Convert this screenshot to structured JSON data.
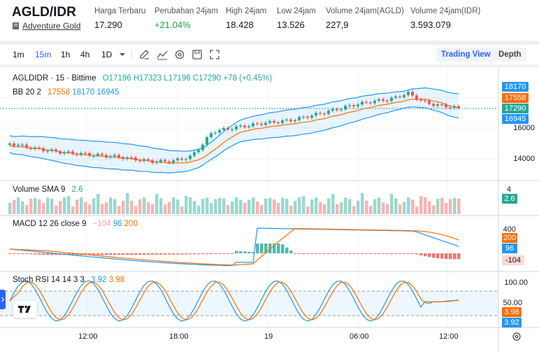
{
  "header": {
    "pair": "AGLD/IDR",
    "token_name": "Adventure Gold",
    "stats": [
      {
        "label": "Harga Terbaru",
        "value": "17.290",
        "color": "default"
      },
      {
        "label": "Perubahan 24jam",
        "value": "+21.04%",
        "color": "green"
      },
      {
        "label": "High 24jam",
        "value": "18.428",
        "color": "default"
      },
      {
        "label": "Low 24jam",
        "value": "13.526",
        "color": "default"
      },
      {
        "label": "Volume 24jam(AGLD)",
        "value": "227,9",
        "color": "default"
      },
      {
        "label": "Volume 24jam(IDR)",
        "value": "3.593.079",
        "color": "default"
      }
    ]
  },
  "toolbar": {
    "intervals": [
      "1m",
      "15m",
      "1h",
      "4h",
      "1D"
    ],
    "active_interval": "15m",
    "icons": [
      "drawing-icon",
      "indicators-icon",
      "settings-icon",
      "save-icon",
      "fullscreen-icon"
    ],
    "trading_view_label": "Trading View",
    "depth_label": "Depth"
  },
  "main_legend": {
    "symbol": "AGLDIDR · 15 · Bittime",
    "open": "O17196",
    "high": "H17323",
    "low": "L17196",
    "close": "C17290",
    "change": "+78 (+0.45%)",
    "bb_label": "BB 20 2",
    "bb_basis": "17558",
    "bb_upper": "18170",
    "bb_lower": "16945"
  },
  "price_axis": {
    "labels": [
      "16000",
      "14000"
    ],
    "tags": [
      {
        "value": "18170",
        "color": "#2196f3"
      },
      {
        "value": "17558",
        "color": "#ff6d00"
      },
      {
        "value": "17290",
        "color": "#26a69a"
      },
      {
        "value": "16945",
        "color": "#2196f3"
      }
    ]
  },
  "volume_legend": {
    "label": "Volume SMA 9",
    "value": "2.6",
    "axis_top": "4",
    "tag": "2.6"
  },
  "macd_legend": {
    "label": "MACD 12 26 close 9",
    "hist": "−104",
    "macd": "96",
    "signal": "200",
    "axis_top": "400",
    "tags": [
      "200",
      "96",
      "-104"
    ]
  },
  "stoch_legend": {
    "label": "Stoch RSI 14 14 3 3",
    "k": "3.92",
    "d": "3.98",
    "axis_labels": [
      "100.00",
      "50.00"
    ],
    "tags": [
      "3.98",
      "3.92"
    ]
  },
  "time_axis": [
    "12:00",
    "18:00",
    "19",
    "06:00",
    "12:00"
  ],
  "colors": {
    "up": "#26a69a",
    "down": "#ef5350",
    "bb": "#2196f3",
    "basis": "#ff6d00",
    "accent": "#2962ff"
  }
}
